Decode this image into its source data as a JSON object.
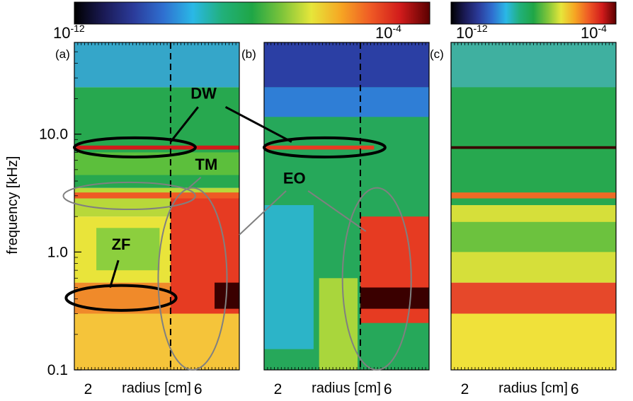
{
  "chart_data": {
    "type": "heatmap",
    "colorbars": [
      {
        "min_label": "10",
        "min_exp": "-12",
        "max_label": "10",
        "max_exp": "-4",
        "colors": [
          "#000000",
          "#1a1a55",
          "#2b3b9a",
          "#2f6fd0",
          "#2ab8e6",
          "#21b07a",
          "#1fa646",
          "#7cc43a",
          "#e6e63a",
          "#f6a623",
          "#ef5a25",
          "#d11b1b",
          "#5a0000"
        ]
      },
      {
        "min_label": "10",
        "min_exp": "-12",
        "max_label": "10",
        "max_exp": "-4",
        "colors": [
          "#000000",
          "#1a1a55",
          "#2b3b9a",
          "#2f6fd0",
          "#2ab8e6",
          "#21b07a",
          "#1fa646",
          "#7cc43a",
          "#e6e63a",
          "#f6a623",
          "#ef5a25",
          "#d11b1b",
          "#5a0000"
        ]
      }
    ],
    "ylabel": "frequency [kHz]",
    "yscale": "log",
    "ylim": [
      0.1,
      60
    ],
    "yticks": [
      {
        "value": 0.1,
        "label": "0.1"
      },
      {
        "value": 1.0,
        "label": "1.0"
      },
      {
        "value": 10.0,
        "label": "10.0"
      }
    ],
    "xlim": [
      1.5,
      7.5
    ],
    "panels": [
      {
        "id": "(a)",
        "xlabel": "radius [cm]",
        "xticks": [
          {
            "value": 2,
            "label": "2"
          },
          {
            "value": 6,
            "label": "6"
          }
        ],
        "dashed_x": 5.0,
        "bands": [
          {
            "f_lo": 0.1,
            "f_hi": 0.35,
            "r_lo": 1.5,
            "r_hi": 7.5,
            "color": "#f5c43a"
          },
          {
            "f_lo": 0.3,
            "f_hi": 0.55,
            "r_lo": 1.5,
            "r_hi": 5.0,
            "color": "#f08a2a"
          },
          {
            "f_lo": 0.55,
            "f_hi": 2.0,
            "r_lo": 1.5,
            "r_hi": 7.5,
            "color": "#e9e43a"
          },
          {
            "f_lo": 0.7,
            "f_hi": 1.6,
            "r_lo": 2.3,
            "r_hi": 4.6,
            "color": "#8ccf3e"
          },
          {
            "f_lo": 2.0,
            "f_hi": 3.5,
            "r_lo": 1.5,
            "r_hi": 7.5,
            "color": "#b8d83a"
          },
          {
            "f_lo": 3.5,
            "f_hi": 25.0,
            "r_lo": 1.5,
            "r_hi": 7.5,
            "color": "#27a84f"
          },
          {
            "f_lo": 4.5,
            "f_hi": 7.0,
            "r_lo": 1.5,
            "r_hi": 7.5,
            "color": "#5cbf3c"
          },
          {
            "f_lo": 25.0,
            "f_hi": 60.0,
            "r_lo": 1.5,
            "r_hi": 7.5,
            "color": "#35a6c9"
          },
          {
            "f_lo": 0.3,
            "f_hi": 3.0,
            "r_lo": 5.0,
            "r_hi": 7.5,
            "color": "#e63b22"
          },
          {
            "f_lo": 0.33,
            "f_hi": 0.55,
            "r_lo": 6.6,
            "r_hi": 7.5,
            "color": "#3a0000"
          },
          {
            "f_lo": 2.85,
            "f_hi": 3.2,
            "r_lo": 1.5,
            "r_hi": 7.5,
            "color": "#ef5a25"
          },
          {
            "f_lo": 7.4,
            "f_hi": 8.0,
            "r_lo": 1.5,
            "r_hi": 7.5,
            "color": "#d11b1b"
          }
        ],
        "annotations": [
          {
            "text": "DW",
            "color": "#000000",
            "f": 20.0,
            "r": 6.2
          },
          {
            "text": "TM",
            "color": "#888888",
            "f": 5.0,
            "r": 6.3
          },
          {
            "text": "ZF",
            "color": "#000000",
            "f": 1.05,
            "r": 3.2
          }
        ]
      },
      {
        "id": "(b)",
        "xlabel": "radius [cm]",
        "xticks": [
          {
            "value": 2,
            "label": "2"
          },
          {
            "value": 6,
            "label": "6"
          }
        ],
        "dashed_x": 5.0,
        "bands": [
          {
            "f_lo": 0.1,
            "f_hi": 60.0,
            "r_lo": 1.5,
            "r_hi": 7.5,
            "color": "#26a85a"
          },
          {
            "f_lo": 0.15,
            "f_hi": 2.5,
            "r_lo": 1.5,
            "r_hi": 3.3,
            "color": "#2cb4c8"
          },
          {
            "f_lo": 0.1,
            "f_hi": 0.6,
            "r_lo": 3.5,
            "r_hi": 4.9,
            "color": "#a9d63c"
          },
          {
            "f_lo": 25.0,
            "f_hi": 60.0,
            "r_lo": 1.5,
            "r_hi": 7.5,
            "color": "#2b3fa4"
          },
          {
            "f_lo": 14.0,
            "f_hi": 25.0,
            "r_lo": 1.5,
            "r_hi": 7.5,
            "color": "#2f7ed6"
          },
          {
            "f_lo": 0.25,
            "f_hi": 2.0,
            "r_lo": 5.0,
            "r_hi": 7.5,
            "color": "#e63b22"
          },
          {
            "f_lo": 0.33,
            "f_hi": 0.5,
            "r_lo": 5.0,
            "r_hi": 7.5,
            "color": "#3a0000"
          },
          {
            "f_lo": 7.4,
            "f_hi": 8.0,
            "r_lo": 1.5,
            "r_hi": 5.5,
            "color": "#e63b22"
          }
        ],
        "annotations": [
          {
            "text": "EO",
            "color": "#888888",
            "f": 3.8,
            "r": 2.6
          }
        ]
      },
      {
        "id": "(c)",
        "xlabel": "radius [cm]",
        "xticks": [
          {
            "value": 2,
            "label": "2"
          },
          {
            "value": 6,
            "label": "6"
          }
        ],
        "dashed_x": null,
        "bands": [
          {
            "f_lo": 0.1,
            "f_hi": 0.3,
            "r_lo": 1.5,
            "r_hi": 7.5,
            "color": "#f0e13a"
          },
          {
            "f_lo": 0.3,
            "f_hi": 0.55,
            "r_lo": 1.5,
            "r_hi": 7.5,
            "color": "#e6482a"
          },
          {
            "f_lo": 0.55,
            "f_hi": 2.5,
            "r_lo": 1.5,
            "r_hi": 7.5,
            "color": "#d6df3a"
          },
          {
            "f_lo": 1.0,
            "f_hi": 1.8,
            "r_lo": 1.5,
            "r_hi": 7.5,
            "color": "#6cc23e"
          },
          {
            "f_lo": 2.5,
            "f_hi": 60.0,
            "r_lo": 1.5,
            "r_hi": 7.5,
            "color": "#27a84f"
          },
          {
            "f_lo": 25.0,
            "f_hi": 60.0,
            "r_lo": 1.5,
            "r_hi": 7.5,
            "color": "#3fb0a0"
          },
          {
            "f_lo": 2.85,
            "f_hi": 3.2,
            "r_lo": 1.5,
            "r_hi": 7.5,
            "color": "#ef6a25"
          },
          {
            "f_lo": 7.5,
            "f_hi": 7.9,
            "r_lo": 1.5,
            "r_hi": 7.5,
            "color": "#3a0000"
          }
        ],
        "annotations": []
      }
    ],
    "ellipses": [
      {
        "panel": 0,
        "f": 7.7,
        "r": 3.7,
        "rr": 2.2,
        "rf_lo": 6.4,
        "rf_hi": 9.3,
        "color": "#000000",
        "width": 4
      },
      {
        "panel": 0,
        "f": 3.0,
        "r": 3.5,
        "rr": 2.4,
        "rf_lo": 2.3,
        "rf_hi": 3.9,
        "color": "#808080",
        "width": 2
      },
      {
        "panel": 0,
        "f": 0.41,
        "r": 3.2,
        "rr": 2.0,
        "rf_lo": 0.32,
        "rf_hi": 0.52,
        "color": "#000000",
        "width": 4
      },
      {
        "panel": 0,
        "f": 0.5,
        "r": 5.8,
        "rr": 1.25,
        "rf_lo": 0.1,
        "rf_hi": 3.5,
        "color": "#808080",
        "width": 2
      },
      {
        "panel": 1,
        "f": 7.7,
        "r": 3.7,
        "rr": 2.2,
        "rf_lo": 6.4,
        "rf_hi": 9.3,
        "color": "#000000",
        "width": 4
      },
      {
        "panel": 1,
        "f": 0.5,
        "r": 5.6,
        "rr": 1.25,
        "rf_lo": 0.1,
        "rf_hi": 3.5,
        "color": "#808080",
        "width": 2
      }
    ],
    "leaders": [
      {
        "from_panel": 0,
        "from_r": 6.0,
        "from_f": 17.0,
        "to_panel": 0,
        "to_r": 5.0,
        "to_f": 8.6,
        "color": "#000000",
        "width": 3
      },
      {
        "from_panel": 0,
        "from_r": 7.0,
        "from_f": 17.0,
        "to_panel": 1,
        "to_r": 2.5,
        "to_f": 8.6,
        "color": "#000000",
        "width": 3
      },
      {
        "from_panel": 0,
        "from_r": 6.1,
        "from_f": 4.3,
        "to_panel": 0,
        "to_r": 5.6,
        "to_f": 3.4,
        "color": "#808080",
        "width": 2
      },
      {
        "from_panel": 0,
        "from_r": 3.1,
        "from_f": 0.85,
        "to_panel": 0,
        "to_r": 2.8,
        "to_f": 0.5,
        "color": "#000000",
        "width": 3
      },
      {
        "from_panel": 1,
        "from_r": 2.3,
        "from_f": 3.3,
        "to_panel": 0,
        "to_r": 7.5,
        "to_f": 1.4,
        "color": "#808080",
        "width": 2
      },
      {
        "from_panel": 1,
        "from_r": 3.1,
        "from_f": 3.3,
        "to_panel": 1,
        "to_r": 5.2,
        "to_f": 1.5,
        "color": "#808080",
        "width": 2
      }
    ]
  }
}
